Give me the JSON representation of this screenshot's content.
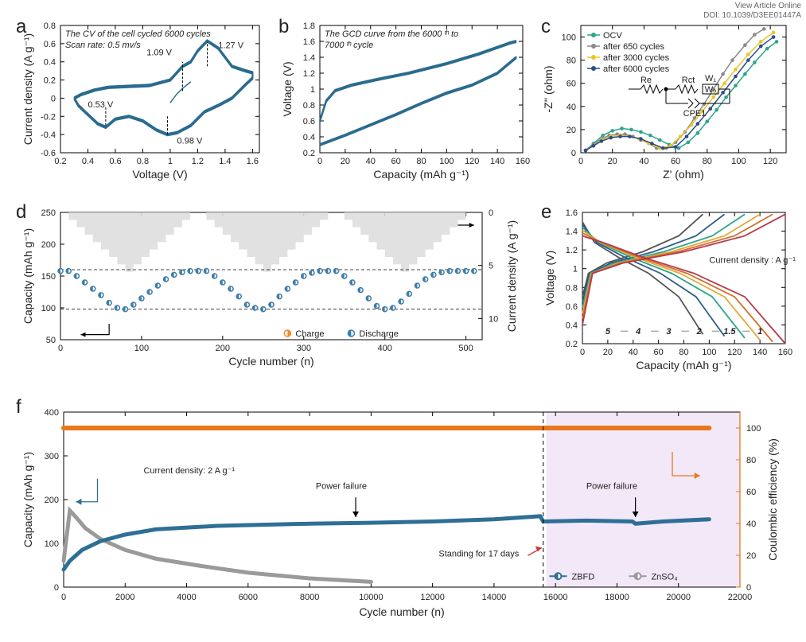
{
  "header": {
    "line1": "View Article Online",
    "line2": "DOI: 10.1039/D3EE01447A"
  },
  "panel_a": {
    "type": "line",
    "label": "a",
    "note1": "The CV of the cell cycled 6000 cycles",
    "note2": "Scan rate: 0.5 mv/s",
    "xlabel": "Voltage (V)",
    "ylabel": "Current density (A g⁻¹)",
    "xlim": [
      0.2,
      1.65
    ],
    "ylim": [
      -0.6,
      0.8
    ],
    "xticks": [
      0.2,
      0.4,
      0.6,
      0.8,
      1.0,
      1.2,
      1.4,
      1.6
    ],
    "yticks": [
      -0.6,
      -0.4,
      -0.2,
      0.0,
      0.2,
      0.4,
      0.6,
      0.8
    ],
    "curve_color": "#2b6b8f",
    "curve_width": 2,
    "cv_curve": [
      [
        0.3,
        0.0
      ],
      [
        0.35,
        0.04
      ],
      [
        0.45,
        0.09
      ],
      [
        0.55,
        0.12
      ],
      [
        0.7,
        0.13
      ],
      [
        0.85,
        0.14
      ],
      [
        1.0,
        0.2
      ],
      [
        1.09,
        0.35
      ],
      [
        1.15,
        0.4
      ],
      [
        1.2,
        0.52
      ],
      [
        1.27,
        0.63
      ],
      [
        1.35,
        0.55
      ],
      [
        1.45,
        0.35
      ],
      [
        1.55,
        0.3
      ],
      [
        1.6,
        0.28
      ],
      [
        1.6,
        0.22
      ],
      [
        1.55,
        0.15
      ],
      [
        1.45,
        0.0
      ],
      [
        1.35,
        -0.08
      ],
      [
        1.25,
        -0.15
      ],
      [
        1.15,
        -0.3
      ],
      [
        1.05,
        -0.38
      ],
      [
        0.98,
        -0.4
      ],
      [
        0.9,
        -0.35
      ],
      [
        0.8,
        -0.25
      ],
      [
        0.7,
        -0.2
      ],
      [
        0.6,
        -0.23
      ],
      [
        0.53,
        -0.32
      ],
      [
        0.47,
        -0.28
      ],
      [
        0.4,
        -0.18
      ],
      [
        0.33,
        -0.08
      ],
      [
        0.3,
        0.0
      ]
    ],
    "annotations": {
      "p1": "1.09 V",
      "p2": "1.27 V",
      "p3": "0.53 V",
      "p4": "0.98 V"
    },
    "annot_pos": {
      "p1": [
        0.92,
        0.47
      ],
      "p2": [
        1.35,
        0.55
      ],
      "p3": [
        0.4,
        -0.1
      ],
      "p4": [
        1.05,
        -0.5
      ]
    },
    "dash_lines": [
      [
        1.09,
        0.08,
        1.09,
        0.4
      ],
      [
        1.27,
        0.35,
        1.27,
        0.62
      ],
      [
        0.53,
        -0.3,
        0.53,
        -0.08
      ],
      [
        0.98,
        -0.4,
        0.98,
        -0.2
      ]
    ]
  },
  "panel_b": {
    "type": "line",
    "label": "b",
    "note1": "The GCD curve from the 6000 ᵗʰ to",
    "note2": "7000 ᵗʰ cycle",
    "xlabel": "Capacity (mAh g⁻¹)",
    "ylabel": "Voltage (V)",
    "xlim": [
      0,
      160
    ],
    "ylim": [
      0.2,
      1.8
    ],
    "xticks": [
      0,
      20,
      40,
      60,
      80,
      100,
      120,
      140,
      160
    ],
    "yticks": [
      0.2,
      0.4,
      0.6,
      0.8,
      1.0,
      1.2,
      1.4,
      1.6,
      1.8
    ],
    "curve_color": "#2b6b8f",
    "curve_width": 2,
    "charge": [
      [
        0,
        0.6
      ],
      [
        5,
        0.85
      ],
      [
        12,
        0.98
      ],
      [
        25,
        1.05
      ],
      [
        45,
        1.12
      ],
      [
        70,
        1.2
      ],
      [
        100,
        1.32
      ],
      [
        125,
        1.44
      ],
      [
        150,
        1.58
      ],
      [
        155,
        1.6
      ]
    ],
    "discharge": [
      [
        155,
        1.4
      ],
      [
        140,
        1.2
      ],
      [
        120,
        1.05
      ],
      [
        100,
        0.95
      ],
      [
        80,
        0.82
      ],
      [
        60,
        0.68
      ],
      [
        40,
        0.55
      ],
      [
        20,
        0.42
      ],
      [
        5,
        0.33
      ],
      [
        0,
        0.3
      ]
    ]
  },
  "panel_c": {
    "type": "scatter",
    "label": "c",
    "xlabel": "Z' (ohm)",
    "ylabel": "-Z'' (ohm)",
    "xlim": [
      0,
      130
    ],
    "ylim": [
      0,
      110
    ],
    "xticks": [
      0,
      20,
      40,
      60,
      80,
      100,
      120
    ],
    "yticks": [
      0,
      20,
      40,
      60,
      80,
      100
    ],
    "circuit_labels": {
      "Re": "Re",
      "Rct": "Rct",
      "Wo": "Wₒ",
      "W1": "W₁",
      "CPE1": "CPE1"
    },
    "background_color": "#ffffff",
    "series": [
      {
        "name": "OCV",
        "color": "#2aa58a",
        "marker": "circle",
        "points": [
          [
            3,
            2
          ],
          [
            8,
            8
          ],
          [
            14,
            15
          ],
          [
            20,
            19
          ],
          [
            26,
            21
          ],
          [
            32,
            20
          ],
          [
            38,
            18
          ],
          [
            44,
            15
          ],
          [
            50,
            11
          ],
          [
            56,
            7
          ],
          [
            62,
            4
          ],
          [
            68,
            9
          ],
          [
            74,
            17
          ],
          [
            80,
            27
          ],
          [
            86,
            37
          ],
          [
            92,
            48
          ],
          [
            98,
            58
          ],
          [
            104,
            68
          ],
          [
            110,
            78
          ],
          [
            118,
            90
          ],
          [
            124,
            96
          ]
        ]
      },
      {
        "name": "after 650 cycles",
        "color": "#8a8a8a",
        "marker": "circle",
        "points": [
          [
            3,
            2
          ],
          [
            8,
            7
          ],
          [
            13,
            12
          ],
          [
            18,
            15
          ],
          [
            23,
            16
          ],
          [
            28,
            16
          ],
          [
            33,
            14
          ],
          [
            38,
            11
          ],
          [
            43,
            8
          ],
          [
            48,
            4
          ],
          [
            54,
            4
          ],
          [
            60,
            9
          ],
          [
            66,
            18
          ],
          [
            72,
            30
          ],
          [
            78,
            42
          ],
          [
            84,
            55
          ],
          [
            90,
            68
          ],
          [
            96,
            80
          ],
          [
            104,
            93
          ],
          [
            110,
            102
          ],
          [
            116,
            107
          ]
        ]
      },
      {
        "name": "after 3000 cycles",
        "color": "#e9c52a",
        "marker": "circle",
        "points": [
          [
            3,
            2
          ],
          [
            8,
            6
          ],
          [
            13,
            11
          ],
          [
            19,
            14
          ],
          [
            25,
            15
          ],
          [
            31,
            14
          ],
          [
            37,
            12
          ],
          [
            43,
            8
          ],
          [
            50,
            4
          ],
          [
            57,
            6
          ],
          [
            63,
            14
          ],
          [
            70,
            24
          ],
          [
            77,
            36
          ],
          [
            84,
            48
          ],
          [
            91,
            60
          ],
          [
            98,
            72
          ],
          [
            106,
            85
          ],
          [
            114,
            96
          ],
          [
            122,
            104
          ]
        ]
      },
      {
        "name": "after 6000 cycles",
        "color": "#2d4c8a",
        "marker": "circle",
        "points": [
          [
            3,
            2
          ],
          [
            8,
            6
          ],
          [
            13,
            10
          ],
          [
            19,
            13
          ],
          [
            25,
            14
          ],
          [
            31,
            14
          ],
          [
            38,
            12
          ],
          [
            45,
            8
          ],
          [
            52,
            4
          ],
          [
            60,
            5
          ],
          [
            67,
            14
          ],
          [
            74,
            25
          ],
          [
            82,
            38
          ],
          [
            90,
            52
          ],
          [
            98,
            66
          ],
          [
            106,
            80
          ],
          [
            114,
            92
          ],
          [
            122,
            100
          ]
        ]
      }
    ]
  },
  "panel_d": {
    "type": "scatter",
    "label": "d",
    "xlabel": "Cycle number (n)",
    "ylabel": "Capacity (mAh g⁻¹)",
    "ylabel2": "Current density (A g⁻¹)",
    "xlim": [
      0,
      520
    ],
    "ylim": [
      50,
      250
    ],
    "ylim2": [
      0,
      12
    ],
    "xticks": [
      0,
      100,
      200,
      300,
      400,
      500
    ],
    "yticks": [
      50,
      100,
      150,
      200,
      250
    ],
    "yticks2": [
      0,
      5,
      10
    ],
    "legend": {
      "charge": "Charge",
      "discharge": "Discharge"
    },
    "charge_color": "#f08c2e",
    "discharge_color": "#3b7fb0",
    "dashlines": [
      160,
      98
    ],
    "staircase_color": "#dedede",
    "points": [
      {
        "x": 0,
        "cap": 158
      },
      {
        "x": 10,
        "cap": 158
      },
      {
        "x": 20,
        "cap": 150
      },
      {
        "x": 30,
        "cap": 140
      },
      {
        "x": 40,
        "cap": 130
      },
      {
        "x": 50,
        "cap": 120
      },
      {
        "x": 60,
        "cap": 108
      },
      {
        "x": 70,
        "cap": 100
      },
      {
        "x": 80,
        "cap": 98
      },
      {
        "x": 90,
        "cap": 105
      },
      {
        "x": 100,
        "cap": 115
      },
      {
        "x": 110,
        "cap": 125
      },
      {
        "x": 120,
        "cap": 135
      },
      {
        "x": 130,
        "cap": 145
      },
      {
        "x": 140,
        "cap": 152
      },
      {
        "x": 150,
        "cap": 156
      },
      {
        "x": 160,
        "cap": 158
      },
      {
        "x": 170,
        "cap": 158
      },
      {
        "x": 180,
        "cap": 158
      },
      {
        "x": 190,
        "cap": 150
      },
      {
        "x": 200,
        "cap": 140
      },
      {
        "x": 210,
        "cap": 130
      },
      {
        "x": 220,
        "cap": 118
      },
      {
        "x": 230,
        "cap": 105
      },
      {
        "x": 240,
        "cap": 100
      },
      {
        "x": 250,
        "cap": 98
      },
      {
        "x": 260,
        "cap": 105
      },
      {
        "x": 270,
        "cap": 118
      },
      {
        "x": 280,
        "cap": 130
      },
      {
        "x": 290,
        "cap": 140
      },
      {
        "x": 300,
        "cap": 150
      },
      {
        "x": 310,
        "cap": 155
      },
      {
        "x": 320,
        "cap": 158
      },
      {
        "x": 330,
        "cap": 158
      },
      {
        "x": 340,
        "cap": 158
      },
      {
        "x": 350,
        "cap": 150
      },
      {
        "x": 360,
        "cap": 140
      },
      {
        "x": 370,
        "cap": 128
      },
      {
        "x": 380,
        "cap": 115
      },
      {
        "x": 390,
        "cap": 103
      },
      {
        "x": 400,
        "cap": 98
      },
      {
        "x": 410,
        "cap": 100
      },
      {
        "x": 420,
        "cap": 110
      },
      {
        "x": 430,
        "cap": 122
      },
      {
        "x": 440,
        "cap": 135
      },
      {
        "x": 450,
        "cap": 145
      },
      {
        "x": 460,
        "cap": 152
      },
      {
        "x": 470,
        "cap": 156
      },
      {
        "x": 480,
        "cap": 158
      },
      {
        "x": 490,
        "cap": 158
      },
      {
        "x": 500,
        "cap": 158
      },
      {
        "x": 510,
        "cap": 158
      }
    ]
  },
  "panel_e": {
    "type": "line",
    "label": "e",
    "xlabel": "Capacity (mAh g⁻¹)",
    "ylabel": "Voltage (V)",
    "xlim": [
      0,
      160
    ],
    "ylim": [
      0.2,
      1.6
    ],
    "xticks": [
      0,
      20,
      40,
      60,
      80,
      100,
      120,
      140,
      160
    ],
    "yticks": [
      0.2,
      0.4,
      0.6,
      0.8,
      1.0,
      1.2,
      1.4,
      1.6
    ],
    "annotation": "Current density : A g⁻¹",
    "series": [
      {
        "rate": "5",
        "color": "#555555",
        "cap": 95
      },
      {
        "rate": "4",
        "color": "#2d5d8a",
        "cap": 112
      },
      {
        "rate": "3",
        "color": "#2aa58a",
        "cap": 128
      },
      {
        "rate": "2",
        "color": "#e3a838",
        "cap": 140
      },
      {
        "rate": "1.5",
        "color": "#d07030",
        "cap": 150
      },
      {
        "rate": "1",
        "color": "#b53a4a",
        "cap": 160
      }
    ]
  },
  "panel_f": {
    "type": "line",
    "label": "f",
    "xlabel": "Cycle number (n)",
    "ylabel": "Capacity (mAh g⁻¹)",
    "ylabel2": "Coulombic efficiency (%)",
    "xlim": [
      0,
      22000
    ],
    "ylim": [
      0,
      400
    ],
    "ylim2": [
      0,
      110
    ],
    "xticks": [
      0,
      2000,
      4000,
      6000,
      8000,
      10000,
      12000,
      14000,
      16000,
      18000,
      20000,
      22000
    ],
    "yticks": [
      0,
      100,
      200,
      300,
      400
    ],
    "yticks2": [
      0,
      20,
      40,
      60,
      80,
      100
    ],
    "colors": {
      "zbfd": "#2e6f95",
      "znso4": "#9a9a9a",
      "ce": "#e8781e",
      "shade": "#f3e8f8"
    },
    "annotations": {
      "cd": "Current density: 2 A g⁻¹",
      "pf": "Power failure",
      "stand": "Standing for 17 days"
    },
    "legend": {
      "zbfd": "ZBFD",
      "znso4": "ZnSO₄"
    },
    "zbfd": [
      [
        0,
        40
      ],
      [
        200,
        60
      ],
      [
        600,
        85
      ],
      [
        1200,
        105
      ],
      [
        2000,
        120
      ],
      [
        3000,
        132
      ],
      [
        5000,
        140
      ],
      [
        8000,
        145
      ],
      [
        10000,
        147
      ],
      [
        12000,
        150
      ],
      [
        14000,
        155
      ],
      [
        15500,
        162
      ],
      [
        15600,
        150
      ],
      [
        17000,
        152
      ],
      [
        18500,
        150
      ],
      [
        18600,
        145
      ],
      [
        19500,
        150
      ],
      [
        21000,
        155
      ]
    ],
    "znso4": [
      [
        0,
        60
      ],
      [
        200,
        175
      ],
      [
        400,
        160
      ],
      [
        700,
        135
      ],
      [
        1200,
        110
      ],
      [
        2000,
        85
      ],
      [
        3000,
        65
      ],
      [
        4500,
        48
      ],
      [
        6000,
        33
      ],
      [
        8000,
        20
      ],
      [
        10000,
        12
      ]
    ],
    "ce": [
      [
        0,
        100
      ],
      [
        21000,
        100
      ]
    ],
    "shade_start": 15700,
    "dash_x": 15600,
    "arrows": {
      "pf1": [
        9500,
        160
      ],
      "pf2": [
        18600,
        160
      ]
    }
  }
}
